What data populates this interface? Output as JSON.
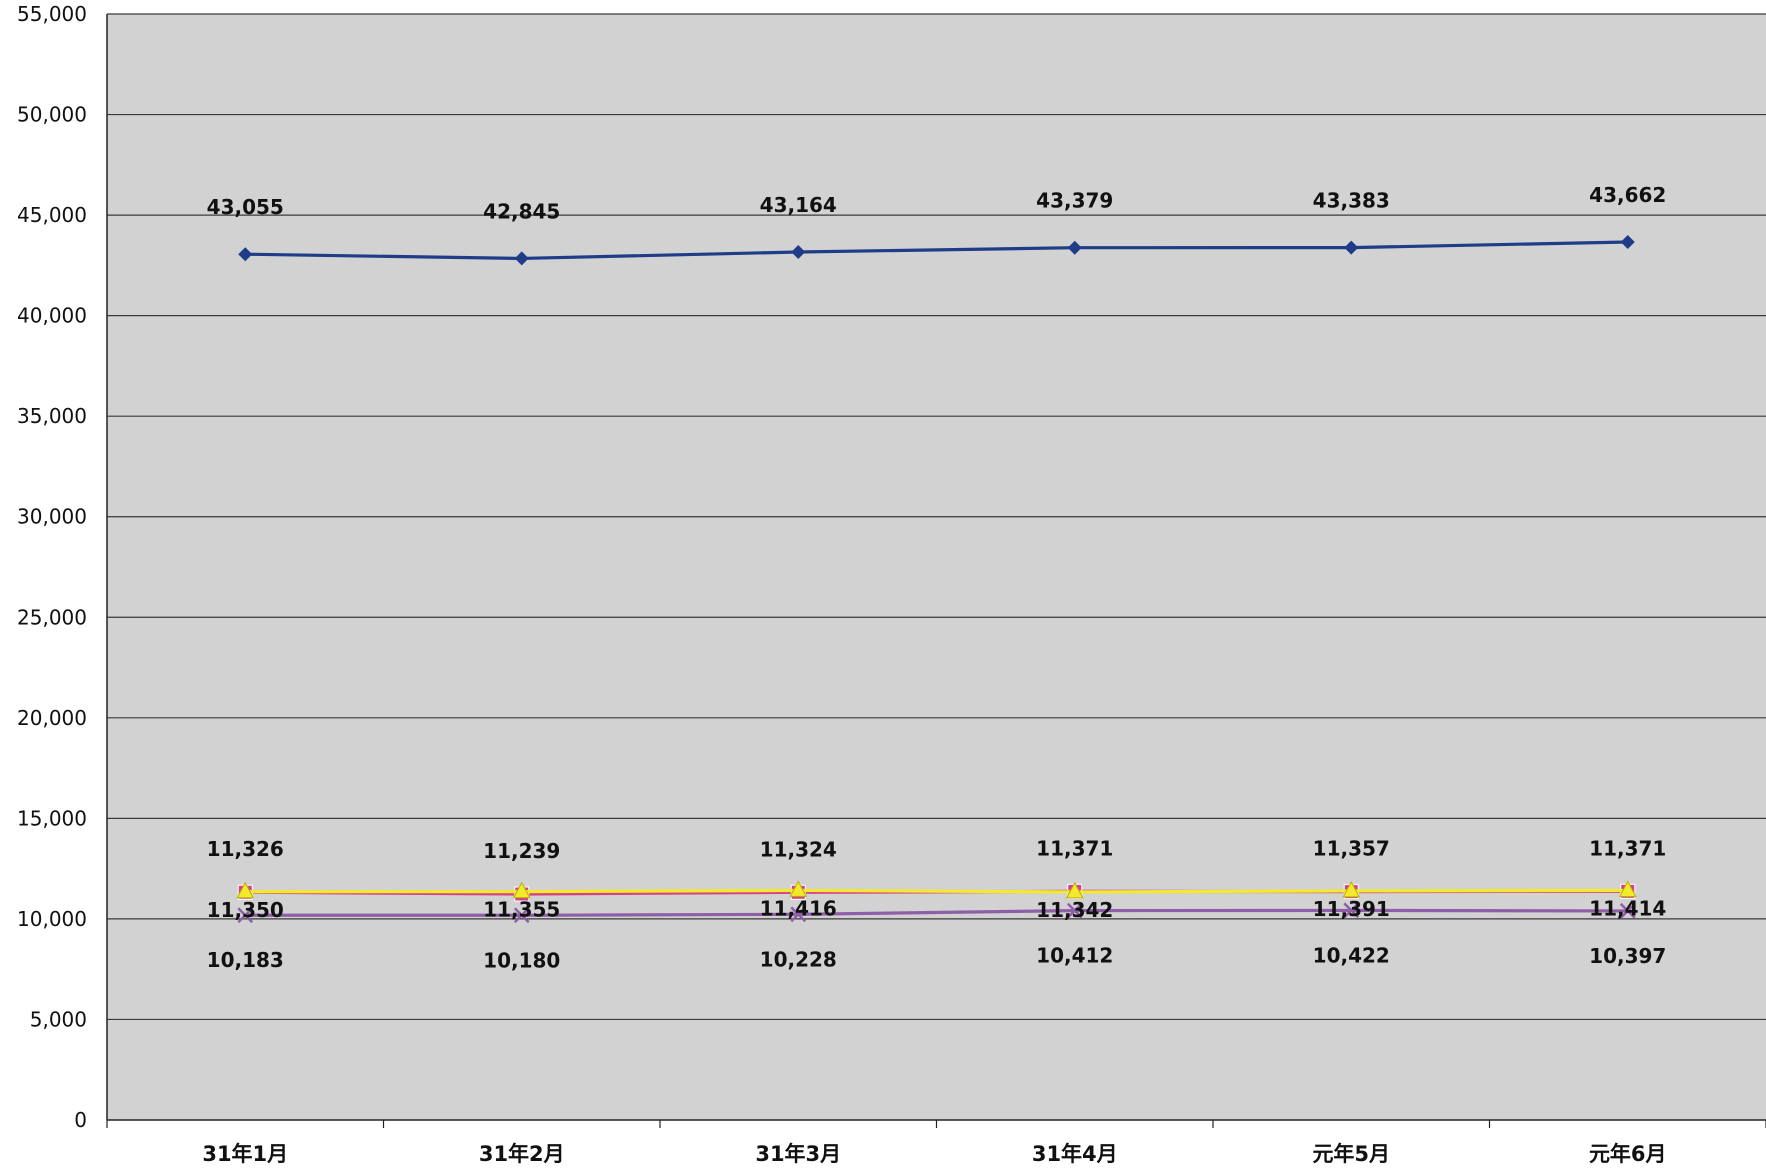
{
  "chart_data": {
    "type": "line",
    "title": "",
    "xlabel": "",
    "ylabel": "",
    "categories": [
      "31年1月",
      "31年2月",
      "31年3月",
      "31年4月",
      "元年5月",
      "元年6月"
    ],
    "ylim": [
      0,
      55000
    ],
    "yticks": [
      0,
      5000,
      10000,
      15000,
      20000,
      25000,
      30000,
      35000,
      40000,
      45000,
      50000,
      55000
    ],
    "grid": true,
    "legend": "none",
    "series": [
      {
        "values": [
          43055,
          42845,
          43164,
          43379,
          43383,
          43662
        ],
        "color": "#1f3c88",
        "marker": "diamond",
        "label_pos": "above"
      },
      {
        "values": [
          11326,
          11239,
          11324,
          11371,
          11357,
          11371
        ],
        "color": "#d63f8c",
        "marker": "square",
        "label_pos": "above"
      },
      {
        "values": [
          11350,
          11355,
          11416,
          11342,
          11391,
          11414
        ],
        "color": "#f2ea2a",
        "marker": "triangle",
        "label_pos": "below-near"
      },
      {
        "values": [
          10183,
          10180,
          10228,
          10412,
          10422,
          10397
        ],
        "color": "#8e5fa8",
        "marker": "x",
        "label_pos": "below-far"
      }
    ],
    "colors": {
      "plot_background": "#d2d2d2",
      "gridline": "#3a3a3a"
    }
  }
}
